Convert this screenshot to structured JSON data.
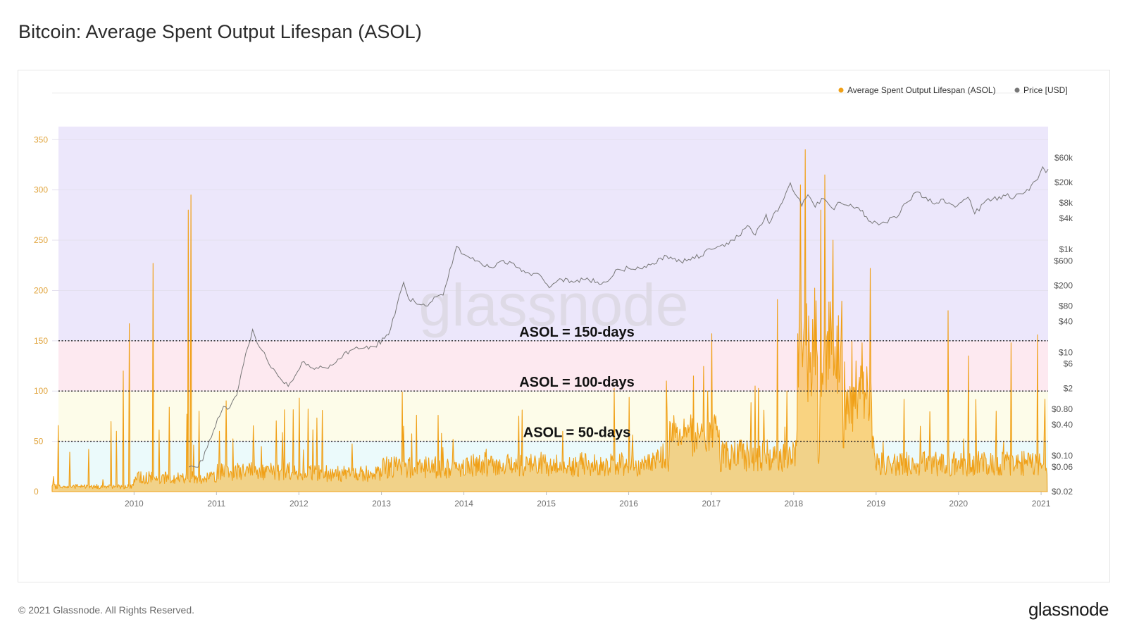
{
  "title": "Bitcoin: Average Spent Output Lifespan (ASOL)",
  "footer": {
    "copyright": "© 2021 Glassnode. All Rights Reserved.",
    "logo": "glassnode"
  },
  "watermark": "glassnode",
  "colors": {
    "asol": "#f0a017",
    "price": "#777777",
    "band_150_plus": "#ece7fb",
    "band_100_150": "#fde9f0",
    "band_50_100": "#fdfce9",
    "band_0_50": "#ebfafb"
  },
  "chart_data": {
    "type": "line",
    "legend": {
      "placement": "top-right",
      "items": [
        {
          "label": "Average Spent Output Lifespan (ASOL)",
          "color": "#f0a017"
        },
        {
          "label": "Price [USD]",
          "color": "#777777"
        }
      ]
    },
    "x_range": [
      "2009-01-03",
      "2021-02-01"
    ],
    "x_ticks": [
      "2010",
      "2011",
      "2012",
      "2013",
      "2014",
      "2015",
      "2016",
      "2017",
      "2018",
      "2019",
      "2020",
      "2021"
    ],
    "y_left": {
      "ticks": [
        0,
        50,
        100,
        150,
        200,
        250,
        300,
        350
      ],
      "range": [
        0,
        360
      ]
    },
    "y_right": {
      "scale": "log",
      "range": [
        0.02,
        60000
      ],
      "ticks": [
        {
          "label": "$60k",
          "value": 60000
        },
        {
          "label": "$20k",
          "value": 20000
        },
        {
          "label": "$8k",
          "value": 8000
        },
        {
          "label": "$4k",
          "value": 4000
        },
        {
          "label": "$1k",
          "value": 1000
        },
        {
          "label": "$600",
          "value": 600
        },
        {
          "label": "$200",
          "value": 200
        },
        {
          "label": "$80",
          "value": 80
        },
        {
          "label": "$40",
          "value": 40
        },
        {
          "label": "$10",
          "value": 10
        },
        {
          "label": "$6",
          "value": 6
        },
        {
          "label": "$2",
          "value": 2
        },
        {
          "label": "$0.80",
          "value": 0.8
        },
        {
          "label": "$0.40",
          "value": 0.4
        },
        {
          "label": "$0.10",
          "value": 0.1
        },
        {
          "label": "$0.06",
          "value": 0.06
        },
        {
          "label": "$0.02",
          "value": 0.02
        }
      ]
    },
    "bands": [
      {
        "from": 150,
        "to": 363,
        "color": "#ece7fb"
      },
      {
        "from": 100,
        "to": 150,
        "color": "#fde9f0"
      },
      {
        "from": 50,
        "to": 100,
        "color": "#fdfce9"
      },
      {
        "from": 0,
        "to": 50,
        "color": "#ebfafb"
      }
    ],
    "thresholds": [
      {
        "value": 150,
        "label": "ASOL = 150-days"
      },
      {
        "value": 100,
        "label": "ASOL = 100-days"
      },
      {
        "value": 50,
        "label": "ASOL = 50-days"
      }
    ],
    "price_series": {
      "name": "Price [USD]",
      "points": [
        [
          "2010-09-01",
          0.06
        ],
        [
          "2010-10-01",
          0.06
        ],
        [
          "2010-11-01",
          0.08
        ],
        [
          "2010-12-01",
          0.2
        ],
        [
          "2011-02-01",
          0.9
        ],
        [
          "2011-03-01",
          0.85
        ],
        [
          "2011-04-01",
          1.5
        ],
        [
          "2011-05-01",
          6
        ],
        [
          "2011-06-10",
          28
        ],
        [
          "2011-07-01",
          15
        ],
        [
          "2011-08-01",
          10
        ],
        [
          "2011-09-01",
          5
        ],
        [
          "2011-10-01",
          3.5
        ],
        [
          "2011-11-15",
          2.2
        ],
        [
          "2011-12-15",
          3.5
        ],
        [
          "2012-01-15",
          6.5
        ],
        [
          "2012-03-01",
          5
        ],
        [
          "2012-05-01",
          5
        ],
        [
          "2012-07-01",
          7.5
        ],
        [
          "2012-08-15",
          11
        ],
        [
          "2012-10-01",
          12
        ],
        [
          "2012-12-01",
          13
        ],
        [
          "2013-02-01",
          22
        ],
        [
          "2013-04-09",
          230
        ],
        [
          "2013-05-01",
          110
        ],
        [
          "2013-07-15",
          80
        ],
        [
          "2013-09-01",
          120
        ],
        [
          "2013-10-01",
          130
        ],
        [
          "2013-11-30",
          1150
        ],
        [
          "2014-01-01",
          800
        ],
        [
          "2014-03-01",
          600
        ],
        [
          "2014-05-01",
          450
        ],
        [
          "2014-06-15",
          600
        ],
        [
          "2014-08-01",
          550
        ],
        [
          "2014-10-01",
          350
        ],
        [
          "2014-12-01",
          330
        ],
        [
          "2015-01-14",
          180
        ],
        [
          "2015-03-01",
          270
        ],
        [
          "2015-05-01",
          230
        ],
        [
          "2015-07-01",
          280
        ],
        [
          "2015-08-24",
          210
        ],
        [
          "2015-10-01",
          240
        ],
        [
          "2015-11-04",
          400
        ],
        [
          "2016-01-01",
          430
        ],
        [
          "2016-03-01",
          420
        ],
        [
          "2016-06-17",
          750
        ],
        [
          "2016-08-01",
          580
        ],
        [
          "2016-10-01",
          620
        ],
        [
          "2017-01-01",
          1000
        ],
        [
          "2017-03-01",
          1150
        ],
        [
          "2017-05-01",
          1800
        ],
        [
          "2017-06-10",
          2900
        ],
        [
          "2017-07-15",
          1900
        ],
        [
          "2017-09-01",
          4800
        ],
        [
          "2017-09-15",
          3200
        ],
        [
          "2017-11-01",
          7000
        ],
        [
          "2017-12-17",
          19500
        ],
        [
          "2018-02-06",
          6900
        ],
        [
          "2018-03-05",
          11500
        ],
        [
          "2018-04-06",
          6600
        ],
        [
          "2018-05-05",
          9800
        ],
        [
          "2018-06-29",
          5900
        ],
        [
          "2018-07-25",
          8200
        ],
        [
          "2018-09-01",
          7000
        ],
        [
          "2018-10-15",
          6400
        ],
        [
          "2018-11-20",
          4300
        ],
        [
          "2018-12-15",
          3200
        ],
        [
          "2019-02-01",
          3400
        ],
        [
          "2019-04-01",
          4100
        ],
        [
          "2019-05-15",
          8000
        ],
        [
          "2019-06-26",
          12900
        ],
        [
          "2019-08-01",
          10000
        ],
        [
          "2019-09-25",
          8000
        ],
        [
          "2019-10-26",
          9500
        ],
        [
          "2019-12-17",
          6600
        ],
        [
          "2020-02-12",
          10300
        ],
        [
          "2020-03-13",
          4900
        ],
        [
          "2020-05-01",
          8800
        ],
        [
          "2020-06-01",
          9500
        ],
        [
          "2020-07-27",
          11000
        ],
        [
          "2020-09-05",
          10200
        ],
        [
          "2020-10-21",
          12800
        ],
        [
          "2020-12-17",
          23000
        ],
        [
          "2021-01-08",
          40000
        ],
        [
          "2021-01-22",
          31000
        ],
        [
          "2021-02-01",
          36000
        ]
      ]
    },
    "asol_series": {
      "name": "Average Spent Output Lifespan (ASOL)",
      "points": [
        [
          "2009-01-10",
          15
        ],
        [
          "2009-02-20",
          5
        ],
        [
          "2009-04-15",
          3
        ],
        [
          "2009-06-15",
          42
        ],
        [
          "2009-08-15",
          12
        ],
        [
          "2009-10-15",
          60
        ],
        [
          "2009-11-15",
          120
        ],
        [
          "2009-12-10",
          167
        ],
        [
          "2010-03-25",
          227
        ],
        [
          "2010-08-28",
          280
        ],
        [
          "2010-09-10",
          295
        ],
        [
          "2010-10-15",
          80
        ],
        [
          "2011-01-15",
          60
        ],
        [
          "2011-06-15",
          45
        ],
        [
          "2012-01-04",
          93
        ],
        [
          "2013-04-10",
          65
        ],
        [
          "2013-11-15",
          52
        ],
        [
          "2014-09-01",
          75
        ],
        [
          "2015-03-15",
          60
        ],
        [
          "2016-06-15",
          110
        ],
        [
          "2016-10-15",
          115
        ],
        [
          "2016-12-15",
          100
        ],
        [
          "2017-01-03",
          157
        ],
        [
          "2017-07-15",
          105
        ],
        [
          "2017-10-20",
          191
        ],
        [
          "2017-12-01",
          100
        ],
        [
          "2018-02-01",
          305
        ],
        [
          "2018-02-20",
          340
        ],
        [
          "2018-04-01",
          100
        ],
        [
          "2018-05-01",
          280
        ],
        [
          "2018-05-20",
          315
        ],
        [
          "2018-06-25",
          250
        ],
        [
          "2018-07-25",
          100
        ],
        [
          "2018-09-15",
          150
        ],
        [
          "2018-11-01",
          148
        ],
        [
          "2018-12-05",
          222
        ],
        [
          "2019-02-01",
          50
        ],
        [
          "2019-07-15",
          65
        ],
        [
          "2019-11-15",
          180
        ],
        [
          "2020-02-15",
          135
        ],
        [
          "2020-06-15",
          80
        ],
        [
          "2020-08-20",
          148
        ],
        [
          "2020-12-15",
          156
        ],
        [
          "2021-01-15",
          65
        ]
      ]
    }
  }
}
